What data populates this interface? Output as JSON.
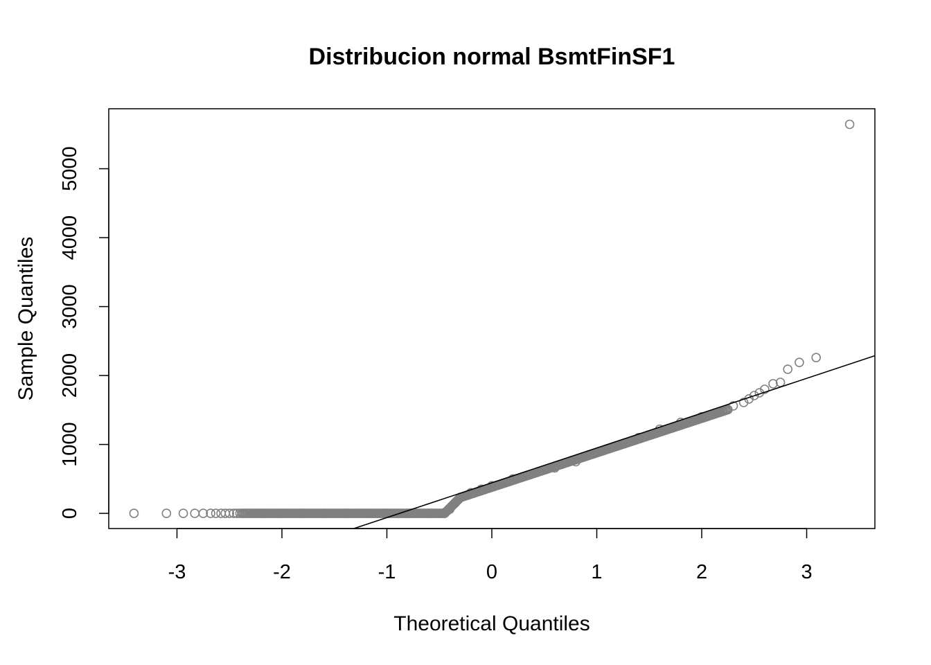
{
  "chart_data": {
    "type": "scatter",
    "title": "Distribucion normal BsmtFinSF1",
    "xlabel": "Theoretical Quantiles",
    "ylabel": "Sample Quantiles",
    "xlim": [
      -3.65,
      3.65
    ],
    "ylim": [
      -220,
      5870
    ],
    "x_ticks": [
      "-3",
      "-2",
      "-1",
      "0",
      "1",
      "2",
      "3"
    ],
    "y_ticks": [
      "0",
      "1000",
      "2000",
      "3000",
      "4000",
      "5000"
    ],
    "grid": false,
    "legend": "none",
    "point_color": "#808080",
    "line_color": "#000000",
    "reference_line": {
      "intercept": 444,
      "slope": 505
    },
    "points": [
      [
        -3.41,
        0
      ],
      [
        -3.1,
        0
      ],
      [
        -2.94,
        0
      ],
      [
        -2.83,
        0
      ],
      [
        -2.75,
        0
      ],
      [
        -2.68,
        0
      ],
      [
        -2.63,
        0
      ],
      [
        -2.58,
        0
      ],
      [
        -2.54,
        0
      ],
      [
        -2.5,
        0
      ],
      [
        -2.46,
        0
      ],
      [
        -2.43,
        0
      ],
      [
        -2.4,
        0
      ],
      [
        -2.2,
        0
      ],
      [
        -2.0,
        0
      ],
      [
        -1.8,
        0
      ],
      [
        -1.6,
        0
      ],
      [
        -1.4,
        0
      ],
      [
        -1.2,
        0
      ],
      [
        -1.0,
        0
      ],
      [
        -0.8,
        0
      ],
      [
        -0.6,
        0
      ],
      [
        -0.45,
        10
      ],
      [
        -0.4,
        60
      ],
      [
        -0.35,
        150
      ],
      [
        -0.3,
        230
      ],
      [
        -0.2,
        300
      ],
      [
        -0.1,
        350
      ],
      [
        0.0,
        400
      ],
      [
        0.2,
        500
      ],
      [
        0.4,
        580
      ],
      [
        0.6,
        660
      ],
      [
        0.8,
        750
      ],
      [
        1.0,
        880
      ],
      [
        1.2,
        980
      ],
      [
        1.4,
        1100
      ],
      [
        1.6,
        1220
      ],
      [
        1.8,
        1320
      ],
      [
        2.0,
        1400
      ],
      [
        2.2,
        1480
      ],
      [
        2.3,
        1560
      ],
      [
        2.4,
        1610
      ],
      [
        2.45,
        1660
      ],
      [
        2.5,
        1710
      ],
      [
        2.55,
        1750
      ],
      [
        2.6,
        1800
      ],
      [
        2.68,
        1880
      ],
      [
        2.75,
        1900
      ],
      [
        2.82,
        2090
      ],
      [
        2.93,
        2190
      ],
      [
        3.09,
        2260
      ],
      [
        3.41,
        5644
      ]
    ]
  }
}
